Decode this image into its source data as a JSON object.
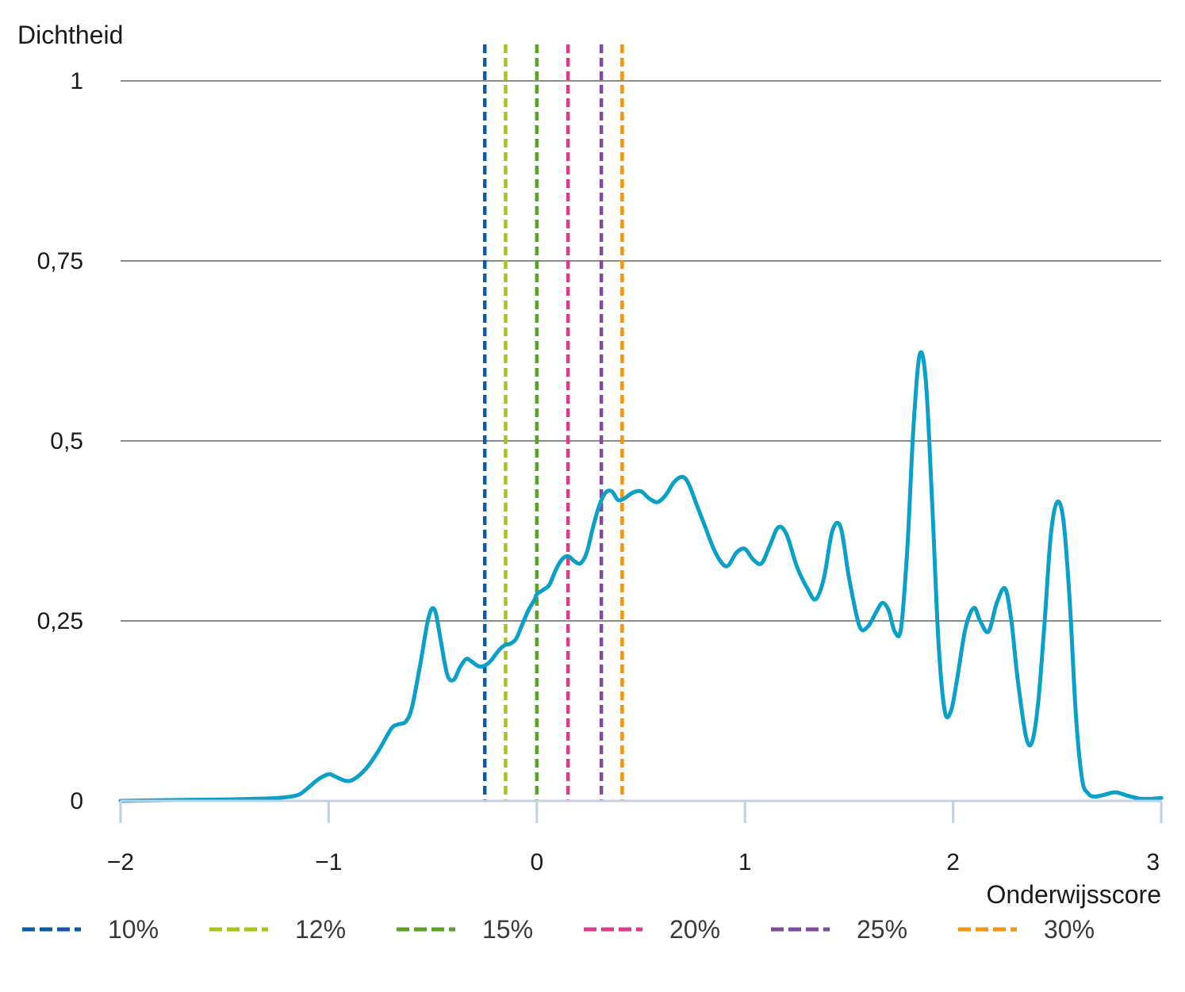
{
  "chart_data": {
    "type": "line",
    "ylabel": "Dichtheid",
    "xlabel": "Onderwijsscore",
    "xlim": [
      -2,
      3
    ],
    "ylim": [
      0,
      1
    ],
    "x_ticks": [
      -2,
      -1,
      0,
      1,
      2,
      3
    ],
    "x_tick_labels": [
      "−2",
      "−1",
      "0",
      "1",
      "2",
      "3"
    ],
    "y_ticks": [
      0,
      0.25,
      0.5,
      0.75,
      1
    ],
    "y_tick_labels": [
      "0",
      "0,25",
      "0,5",
      "0,75",
      "1"
    ],
    "grid": "horizontal",
    "legend_position": "bottom",
    "series": [
      {
        "color": "#0aa0c8",
        "x": [
          -2,
          -1.8,
          -1.5,
          -1.35,
          -1.25,
          -1.15,
          -1.1,
          -1.05,
          -1.0,
          -0.97,
          -0.92,
          -0.88,
          -0.82,
          -0.76,
          -0.7,
          -0.67,
          -0.63,
          -0.6,
          -0.56,
          -0.52,
          -0.49,
          -0.46,
          -0.43,
          -0.4,
          -0.37,
          -0.34,
          -0.32,
          -0.28,
          -0.25,
          -0.22,
          -0.18,
          -0.15,
          -0.13,
          -0.1,
          -0.07,
          -0.04,
          -0.01,
          0.0,
          0.03,
          0.06,
          0.09,
          0.12,
          0.15,
          0.18,
          0.21,
          0.24,
          0.27,
          0.3,
          0.33,
          0.36,
          0.39,
          0.42,
          0.46,
          0.5,
          0.54,
          0.58,
          0.62,
          0.66,
          0.7,
          0.73,
          0.77,
          0.81,
          0.85,
          0.89,
          0.92,
          0.96,
          1.0,
          1.04,
          1.08,
          1.12,
          1.16,
          1.2,
          1.25,
          1.3,
          1.34,
          1.38,
          1.42,
          1.46,
          1.5,
          1.55,
          1.59,
          1.63,
          1.66,
          1.69,
          1.72,
          1.75,
          1.78,
          1.81,
          1.84,
          1.87,
          1.9,
          1.93,
          1.96,
          1.99,
          2.02,
          2.06,
          2.1,
          2.13,
          2.17,
          2.21,
          2.25,
          2.28,
          2.31,
          2.35,
          2.38,
          2.41,
          2.44,
          2.47,
          2.5,
          2.53,
          2.56,
          2.59,
          2.62,
          2.65,
          2.68,
          2.72,
          2.78,
          2.84,
          2.9,
          2.96,
          3.0
        ],
        "y": [
          0.0,
          0.001,
          0.002,
          0.003,
          0.004,
          0.008,
          0.018,
          0.03,
          0.037,
          0.034,
          0.028,
          0.03,
          0.045,
          0.07,
          0.1,
          0.106,
          0.11,
          0.13,
          0.19,
          0.255,
          0.265,
          0.22,
          0.175,
          0.168,
          0.185,
          0.197,
          0.195,
          0.187,
          0.188,
          0.195,
          0.21,
          0.217,
          0.218,
          0.225,
          0.245,
          0.265,
          0.28,
          0.287,
          0.293,
          0.3,
          0.32,
          0.335,
          0.34,
          0.333,
          0.33,
          0.345,
          0.38,
          0.41,
          0.428,
          0.43,
          0.418,
          0.42,
          0.428,
          0.43,
          0.42,
          0.415,
          0.425,
          0.443,
          0.45,
          0.44,
          0.41,
          0.38,
          0.35,
          0.33,
          0.327,
          0.345,
          0.35,
          0.335,
          0.33,
          0.355,
          0.38,
          0.37,
          0.325,
          0.295,
          0.28,
          0.31,
          0.375,
          0.38,
          0.31,
          0.243,
          0.242,
          0.262,
          0.275,
          0.265,
          0.235,
          0.24,
          0.35,
          0.52,
          0.62,
          0.58,
          0.41,
          0.22,
          0.125,
          0.125,
          0.17,
          0.24,
          0.268,
          0.25,
          0.235,
          0.275,
          0.295,
          0.25,
          0.17,
          0.09,
          0.082,
          0.14,
          0.25,
          0.37,
          0.415,
          0.39,
          0.28,
          0.12,
          0.03,
          0.01,
          0.006,
          0.008,
          0.012,
          0.007,
          0.003,
          0.003,
          0.004
        ]
      }
    ],
    "reference_lines": [
      {
        "label": "10%",
        "x": -0.25,
        "color": "#0f5aa5"
      },
      {
        "label": "12%",
        "x": -0.15,
        "color": "#a7c519"
      },
      {
        "label": "15%",
        "x": 0.0,
        "color": "#5aa228"
      },
      {
        "label": "20%",
        "x": 0.15,
        "color": "#db3b8b"
      },
      {
        "label": "25%",
        "x": 0.31,
        "color": "#7e4c9c"
      },
      {
        "label": "30%",
        "x": 0.41,
        "color": "#f09614"
      }
    ]
  }
}
